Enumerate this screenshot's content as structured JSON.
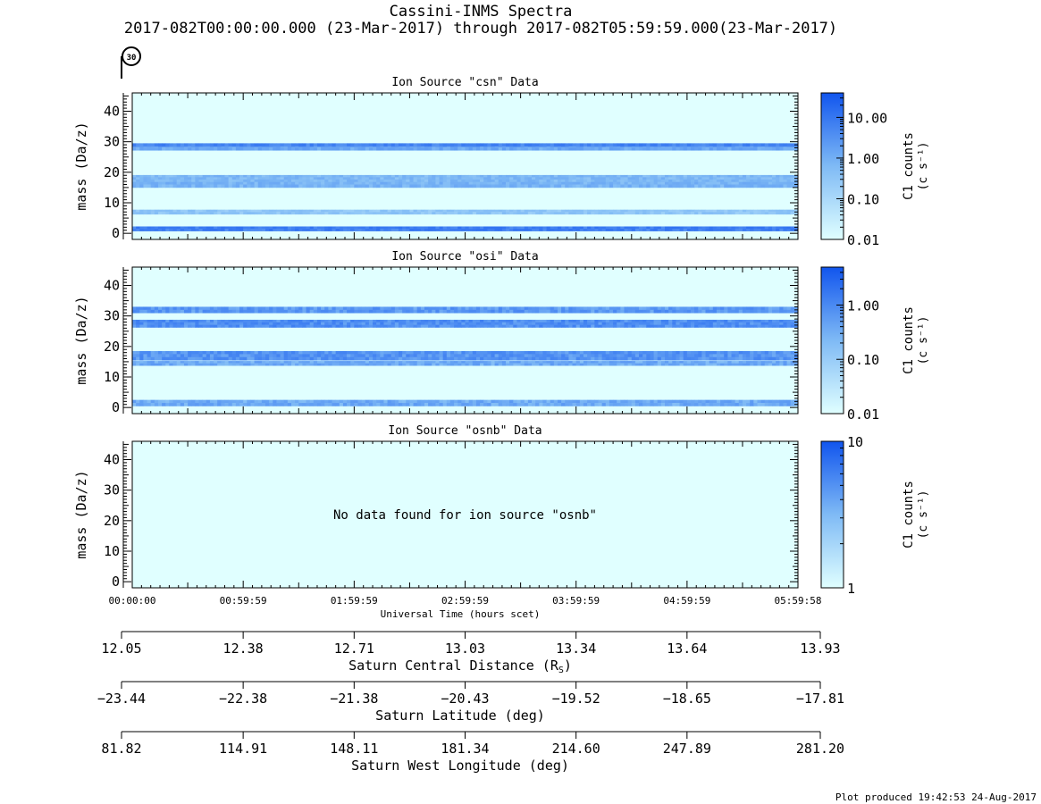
{
  "header": {
    "title": "Cassini-INMS Spectra",
    "subtitle": "2017-082T00:00:00.000 (23-Mar-2017) through 2017-082T05:59:59.000(23-Mar-2017)",
    "orbit_badge": "30"
  },
  "footer": {
    "produced": "Plot produced 19:42:53 24-Aug-2017"
  },
  "chart_data": [
    {
      "type": "heatmap",
      "title": "Ion Source \"csn\" Data",
      "ylabel": "mass (Da/z)",
      "ylim": [
        -2,
        46
      ],
      "yticks": [
        0,
        10,
        20,
        30,
        40
      ],
      "xlim": [
        0,
        359.97
      ],
      "x_unit": "minutes since 00:00:00",
      "bands": [
        {
          "mass": 1.5,
          "width": 1.5,
          "counts": 8.0
        },
        {
          "mass": 7.0,
          "width": 1.5,
          "counts": 0.35
        },
        {
          "mass": 16.0,
          "width": 2.0,
          "counts": 0.9
        },
        {
          "mass": 18.0,
          "width": 2.2,
          "counts": 0.7
        },
        {
          "mass": 28.2,
          "width": 2.0,
          "counts": 1.5
        },
        {
          "mass": 29.0,
          "width": 1.0,
          "counts": 6.0
        }
      ],
      "colorbar": {
        "label": "C1 counts",
        "unit": "(c s⁻¹)",
        "scale": "log",
        "range": [
          0.01,
          40
        ],
        "tick_values": [
          0.01,
          0.1,
          1.0,
          10.0
        ],
        "tick_labels": [
          "0.01",
          "0.10",
          "1.00",
          "10.00"
        ]
      },
      "message": ""
    },
    {
      "type": "heatmap",
      "title": "Ion Source \"osi\" Data",
      "ylabel": "mass (Da/z)",
      "ylim": [
        -2,
        46
      ],
      "yticks": [
        0,
        10,
        20,
        30,
        40
      ],
      "xlim": [
        0,
        359.97
      ],
      "x_unit": "minutes since 00:00:00",
      "bands": [
        {
          "mass": 1.5,
          "width": 2.0,
          "counts": 0.4
        },
        {
          "mass": 14.5,
          "width": 1.5,
          "counts": 0.4
        },
        {
          "mass": 17.0,
          "width": 3.0,
          "counts": 0.8
        },
        {
          "mass": 27.5,
          "width": 2.5,
          "counts": 0.9
        },
        {
          "mass": 32.0,
          "width": 2.0,
          "counts": 0.7
        }
      ],
      "colorbar": {
        "label": "C1 counts",
        "unit": "(c s⁻¹)",
        "scale": "log",
        "range": [
          0.01,
          5
        ],
        "tick_values": [
          0.01,
          0.1,
          1.0
        ],
        "tick_labels": [
          "0.01",
          "0.10",
          "1.00"
        ]
      },
      "message": ""
    },
    {
      "type": "heatmap",
      "title": "Ion Source \"osnb\" Data",
      "ylabel": "mass (Da/z)",
      "ylim": [
        -2,
        46
      ],
      "yticks": [
        0,
        10,
        20,
        30,
        40
      ],
      "xlim": [
        0,
        359.97
      ],
      "x_unit": "minutes since 00:00:00",
      "bands": [],
      "colorbar": {
        "label": "C1 counts",
        "unit": "(c s⁻¹)",
        "scale": "log",
        "range": [
          1,
          10
        ],
        "tick_values": [
          1,
          10
        ],
        "tick_labels": [
          "1",
          "10"
        ]
      },
      "message": "No data found for ion source \"osnb\""
    }
  ],
  "time_axis": {
    "label": "Universal Time (hours scet)",
    "ticks": [
      {
        "minutes": 0,
        "label": "00:00:00"
      },
      {
        "minutes": 59.98,
        "label": "00:59:59"
      },
      {
        "minutes": 119.98,
        "label": "01:59:59"
      },
      {
        "minutes": 179.98,
        "label": "02:59:59"
      },
      {
        "minutes": 239.98,
        "label": "03:59:59"
      },
      {
        "minutes": 299.98,
        "label": "04:59:59"
      },
      {
        "minutes": 359.97,
        "label": "05:59:58"
      }
    ]
  },
  "ephemeris_axes": [
    {
      "label": "Saturn Central Distance (R",
      "label_sub": "S",
      "label_end": ")",
      "values": [
        "12.05",
        "12.38",
        "12.71",
        "13.03",
        "13.34",
        "13.64",
        "13.93"
      ]
    },
    {
      "label": "Saturn Latitude (deg)",
      "label_sub": "",
      "label_end": "",
      "values": [
        "−23.44",
        "−22.38",
        "−21.38",
        "−20.43",
        "−19.52",
        "−18.65",
        "−17.81"
      ]
    },
    {
      "label": "Saturn West Longitude (deg)",
      "label_sub": "",
      "label_end": "",
      "values": [
        "81.82",
        "114.91",
        "148.11",
        "181.34",
        "214.60",
        "247.89",
        "281.20"
      ]
    }
  ],
  "colors": {
    "background_low": "#e0ffff",
    "band_high": "#1060ee",
    "colorbar_top": "#1155ee",
    "colorbar_bottom": "#e0ffff",
    "frame": "#000000"
  }
}
